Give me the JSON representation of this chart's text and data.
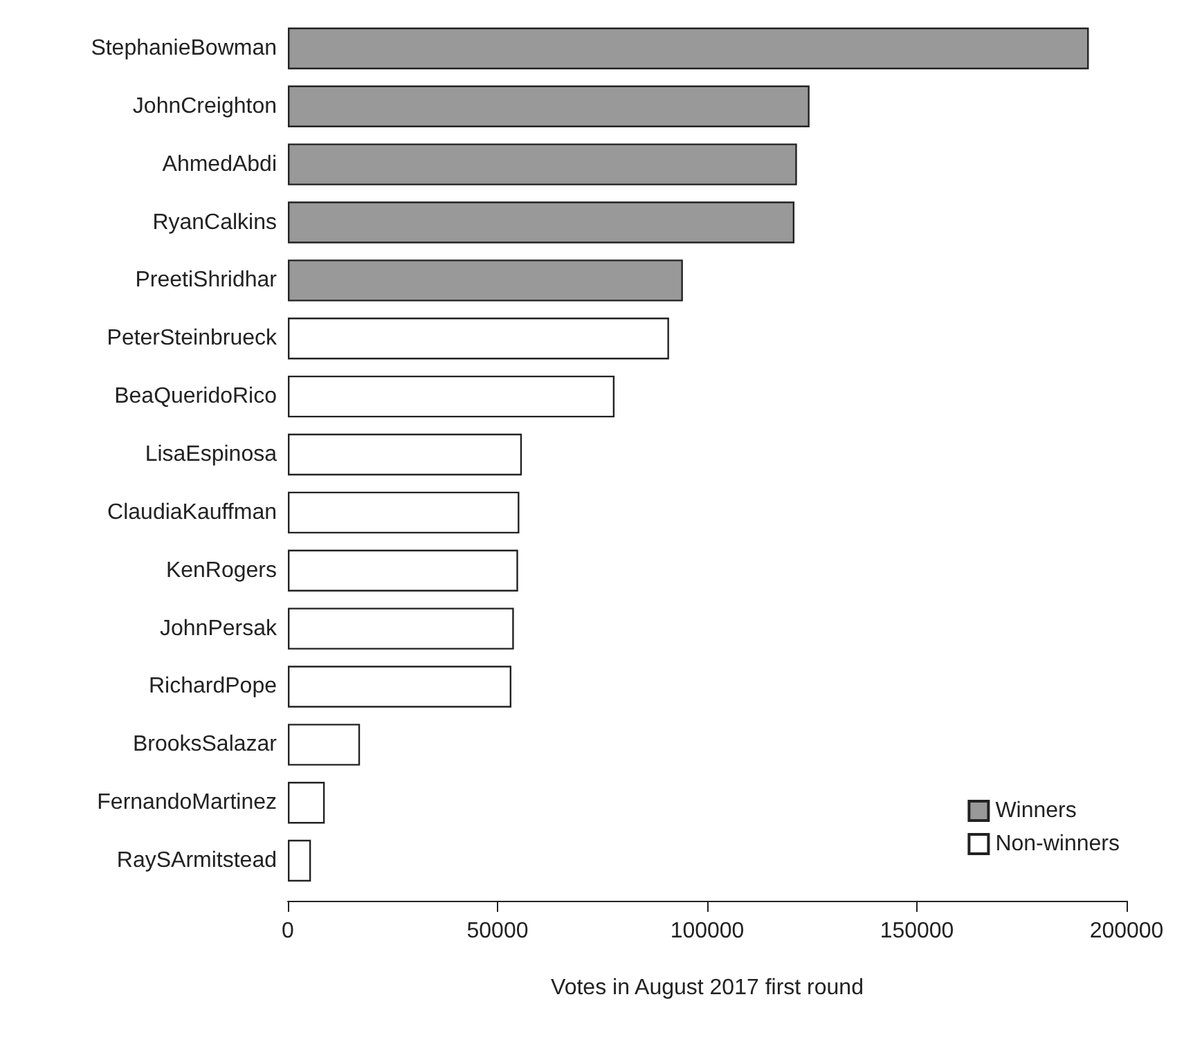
{
  "chart_data": {
    "type": "bar",
    "orientation": "horizontal",
    "xlabel": "Votes in August 2017 first round",
    "categories": [
      "StephanieBowman",
      "JohnCreighton",
      "AhmedAbdi",
      "RyanCalkins",
      "PreetiShridhar",
      "PeterSteinbrueck",
      "BeaQueridoRico",
      "LisaEspinosa",
      "ClaudiaKauffman",
      "KenRogers",
      "JohnPersak",
      "RichardPope",
      "BrooksSalazar",
      "FernandoMartinez",
      "RaySArmitstead"
    ],
    "series": [
      {
        "name": "Winners",
        "color": "#999999",
        "values": [
          191000,
          124400,
          121400,
          120800,
          94200,
          null,
          null,
          null,
          null,
          null,
          null,
          null,
          null,
          null,
          null
        ]
      },
      {
        "name": "Non-winners",
        "color": "#ffffff",
        "values": [
          null,
          null,
          null,
          null,
          null,
          90900,
          77900,
          55800,
          55200,
          54900,
          53900,
          53300,
          17200,
          8800,
          5500
        ]
      }
    ],
    "xlim": [
      0,
      200000
    ],
    "xticks": [
      0,
      50000,
      100000,
      150000,
      200000
    ],
    "grid": false,
    "legend": "bottom right"
  }
}
